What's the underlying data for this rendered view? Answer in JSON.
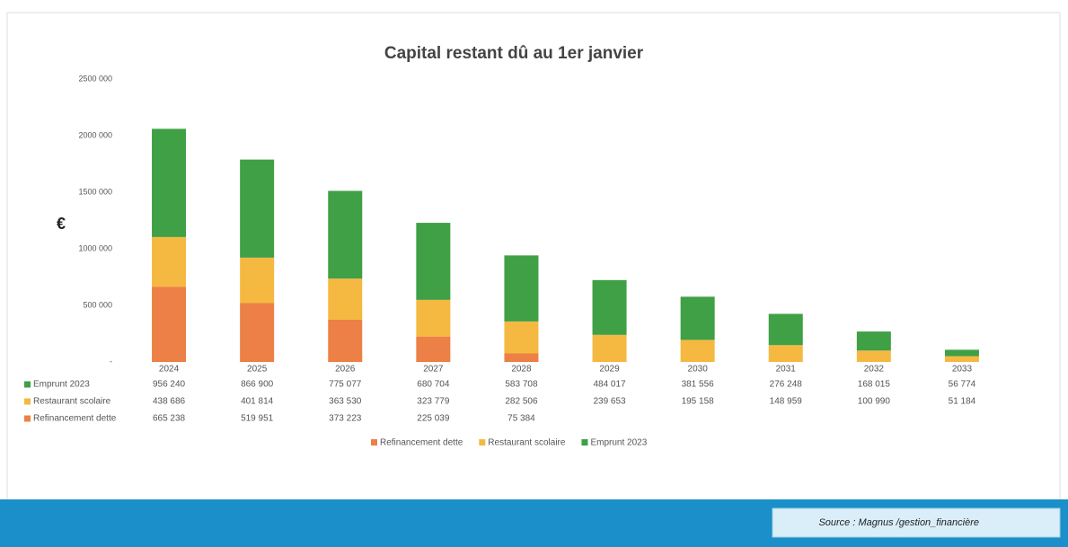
{
  "chart_data": {
    "type": "stacked_bar",
    "title": "Capital restant dû au 1er janvier",
    "y_label": "€",
    "categories": [
      "2024",
      "2025",
      "2026",
      "2027",
      "2028",
      "2029",
      "2030",
      "2031",
      "2032",
      "2033"
    ],
    "series": [
      {
        "name": "Refinancement dette",
        "color": "#ec8046",
        "values": [
          665238,
          519951,
          373223,
          225039,
          75384,
          null,
          null,
          null,
          null,
          null
        ],
        "value_labels": [
          "665 238",
          "519 951",
          "373 223",
          "225 039",
          "75 384",
          null,
          null,
          null,
          null,
          null
        ]
      },
      {
        "name": "Restaurant scolaire",
        "color": "#f5b942",
        "values": [
          438686,
          401814,
          363530,
          323779,
          282506,
          239653,
          195158,
          148959,
          100990,
          51184
        ],
        "value_labels": [
          "438 686",
          "401 814",
          "363 530",
          "323 779",
          "282 506",
          "239 653",
          "195 158",
          "148 959",
          "100 990",
          "51 184"
        ]
      },
      {
        "name": "Emprunt 2023",
        "color": "#3fa046",
        "values": [
          956240,
          866900,
          775077,
          680704,
          583708,
          484017,
          381556,
          276248,
          168015,
          56774
        ],
        "value_labels": [
          "956 240",
          "866 900",
          "775 077",
          "680 704",
          "583 708",
          "484 017",
          "381 556",
          "276 248",
          "168 015",
          "56 774"
        ]
      }
    ],
    "ylim": [
      0,
      2500000
    ],
    "yticks": [
      {
        "value": 0,
        "label": "-"
      },
      {
        "value": 500000,
        "label": "500 000"
      },
      {
        "value": 1000000,
        "label": "1000 000"
      },
      {
        "value": 1500000,
        "label": "1500 000"
      },
      {
        "value": 2000000,
        "label": "2000 000"
      },
      {
        "value": 2500000,
        "label": "2500 000"
      }
    ],
    "grid": false,
    "legend": "bottom",
    "source": "Source : Magnus /gestion_financière"
  }
}
